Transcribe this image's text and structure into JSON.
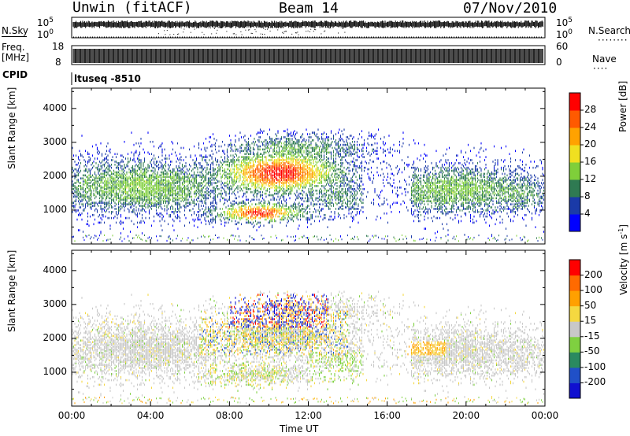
{
  "header": {
    "station": "Unwin (fitACF)",
    "beam": "Beam 14",
    "date": "07/Nov/2010"
  },
  "strips": {
    "nsky_label": "N.Sky",
    "nsky_top": "10^5",
    "nsky_bottom": "10^0",
    "nsearch_label": "N.Search",
    "nsearch_top": "10^5",
    "nsearch_bottom": "10^0",
    "freq_label": "Freq.",
    "freq_unit": "[MHz]",
    "freq_top": "18",
    "freq_bottom": "8",
    "nave_label": "Nave",
    "nave_top": "60",
    "nave_bottom": "0",
    "cpid_label": "CPID",
    "cpid_value": "ltuseq -8510"
  },
  "chart_data": [
    {
      "type": "heatmap",
      "ylabel": "Slant Range [km]",
      "ylim": [
        0,
        4600
      ],
      "yticks": [
        1000,
        2000,
        3000,
        4000
      ],
      "colorbar": {
        "label": "Power [dB]",
        "ticks": [
          "4",
          "8",
          "12",
          "16",
          "20",
          "24",
          "28"
        ],
        "colors": [
          "#0000ff",
          "#1a3aa8",
          "#2f7a52",
          "#7fcf3a",
          "#f0e020",
          "#ffa200",
          "#ff5a00",
          "#ff0000"
        ]
      }
    },
    {
      "type": "heatmap",
      "ylabel": "Slant Range [km]",
      "ylim": [
        0,
        4600
      ],
      "yticks": [
        1000,
        2000,
        3000,
        4000
      ],
      "xlabel": "Time UT",
      "xticks": [
        "00:00",
        "04:00",
        "08:00",
        "12:00",
        "16:00",
        "20:00",
        "00:00"
      ],
      "colorbar": {
        "label": "Velocity [m s^-1]",
        "ticks": [
          "200",
          "100",
          "50",
          "15",
          "-15",
          "-50",
          "-100",
          "-200"
        ],
        "colors": [
          "#1010d0",
          "#2050c8",
          "#2a8a60",
          "#7fd040",
          "#c8c8c8",
          "#f5d840",
          "#ffa000",
          "#ff6a00",
          "#ff0000"
        ]
      }
    }
  ]
}
